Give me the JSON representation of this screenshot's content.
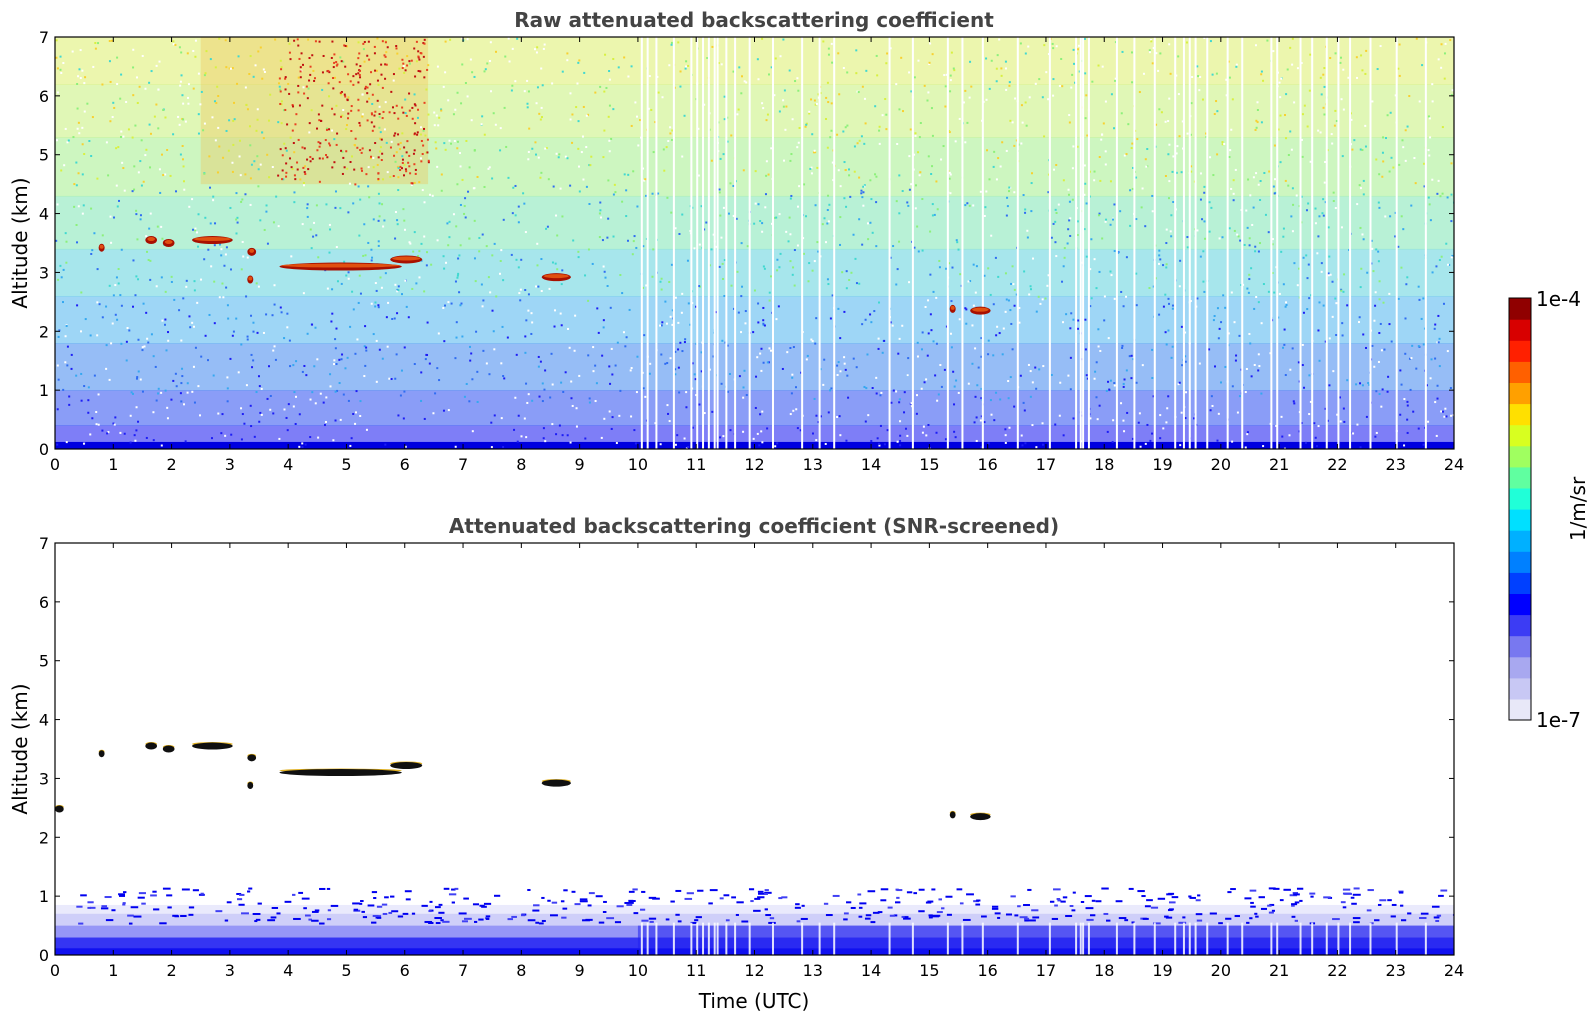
{
  "chart_data": [
    {
      "type": "heatmap",
      "title": "Raw attenuated backscattering coefficient",
      "xlabel": "",
      "ylabel": "Altitude (km)",
      "xlim": [
        0,
        24
      ],
      "ylim": [
        0,
        7
      ],
      "x_ticks": [
        "0",
        "1",
        "2",
        "3",
        "4",
        "5",
        "6",
        "7",
        "8",
        "9",
        "10",
        "11",
        "12",
        "13",
        "14",
        "15",
        "16",
        "17",
        "18",
        "19",
        "20",
        "21",
        "22",
        "23",
        "24"
      ],
      "y_ticks": [
        "0",
        "1",
        "2",
        "3",
        "4",
        "5",
        "6",
        "7"
      ],
      "cloud_layers": [
        {
          "t_start": 0.75,
          "t_end": 0.85,
          "alt_km": 3.42
        },
        {
          "t_start": 1.55,
          "t_end": 1.75,
          "alt_km": 3.55
        },
        {
          "t_start": 1.85,
          "t_end": 2.05,
          "alt_km": 3.5
        },
        {
          "t_start": 2.35,
          "t_end": 3.05,
          "alt_km": 3.55
        },
        {
          "t_start": 3.3,
          "t_end": 3.45,
          "alt_km": 3.35
        },
        {
          "t_start": 3.3,
          "t_end": 3.4,
          "alt_km": 2.88
        },
        {
          "t_start": 3.85,
          "t_end": 5.95,
          "alt_km": 3.1
        },
        {
          "t_start": 5.75,
          "t_end": 6.3,
          "alt_km": 3.22
        },
        {
          "t_start": 8.35,
          "t_end": 8.85,
          "alt_km": 2.92
        },
        {
          "t_start": 15.35,
          "t_end": 15.45,
          "alt_km": 2.38
        },
        {
          "t_start": 15.7,
          "t_end": 16.05,
          "alt_km": 2.35
        }
      ],
      "data_gaps_utc": [
        10.05,
        10.15,
        10.3,
        10.6,
        10.9,
        11.0,
        11.1,
        11.2,
        11.3,
        11.35,
        11.5,
        11.65,
        11.9,
        12.3,
        12.8,
        13.1,
        13.35,
        14.3,
        14.7,
        15.3,
        15.55,
        15.9,
        16.5,
        17.05,
        17.5,
        17.58,
        17.62,
        17.72,
        18.2,
        18.5,
        18.85,
        19.2,
        19.35,
        19.45,
        19.55,
        19.75,
        20.1,
        20.35,
        20.85,
        20.95,
        21.35,
        21.55,
        21.8,
        22.0,
        22.2,
        22.55,
        23.0,
        23.5
      ],
      "colormap": "jet",
      "scale": "log"
    },
    {
      "type": "heatmap",
      "title": "Attenuated backscattering coefficient (SNR-screened)",
      "xlabel": "Time (UTC)",
      "ylabel": "Altitude (km)",
      "xlim": [
        0,
        24
      ],
      "ylim": [
        0,
        7
      ],
      "x_ticks": [
        "0",
        "1",
        "2",
        "3",
        "4",
        "5",
        "6",
        "7",
        "8",
        "9",
        "10",
        "11",
        "12",
        "13",
        "14",
        "15",
        "16",
        "17",
        "18",
        "19",
        "20",
        "21",
        "22",
        "23",
        "24"
      ],
      "y_ticks": [
        "0",
        "1",
        "2",
        "3",
        "4",
        "5",
        "6",
        "7"
      ],
      "cloud_layers": [
        {
          "t_start": 0.0,
          "t_end": 0.15,
          "alt_km": 2.48
        },
        {
          "t_start": 0.75,
          "t_end": 0.85,
          "alt_km": 3.42
        },
        {
          "t_start": 1.55,
          "t_end": 1.75,
          "alt_km": 3.55
        },
        {
          "t_start": 1.85,
          "t_end": 2.05,
          "alt_km": 3.5
        },
        {
          "t_start": 2.35,
          "t_end": 3.05,
          "alt_km": 3.55
        },
        {
          "t_start": 3.3,
          "t_end": 3.45,
          "alt_km": 3.35
        },
        {
          "t_start": 3.3,
          "t_end": 3.4,
          "alt_km": 2.88
        },
        {
          "t_start": 3.85,
          "t_end": 5.95,
          "alt_km": 3.1
        },
        {
          "t_start": 5.75,
          "t_end": 6.3,
          "alt_km": 3.22
        },
        {
          "t_start": 8.35,
          "t_end": 8.85,
          "alt_km": 2.92
        },
        {
          "t_start": 15.35,
          "t_end": 15.45,
          "alt_km": 2.38
        },
        {
          "t_start": 15.7,
          "t_end": 16.05,
          "alt_km": 2.35
        }
      ],
      "colormap": "jet",
      "scale": "log"
    }
  ],
  "colorbar": {
    "label": "1/m/sr",
    "max_label": "1e-4",
    "min_label": "1e-7",
    "colors": [
      "#e8e8f8",
      "#c8c8f4",
      "#a8a8f0",
      "#7878f0",
      "#3c3cf4",
      "#0000ff",
      "#0040ff",
      "#0080ff",
      "#00b0ff",
      "#00e0ff",
      "#20ffd8",
      "#60ffa0",
      "#a0ff60",
      "#d8ff20",
      "#ffe000",
      "#ffa000",
      "#ff6000",
      "#ff2000",
      "#d80000",
      "#900000"
    ]
  }
}
